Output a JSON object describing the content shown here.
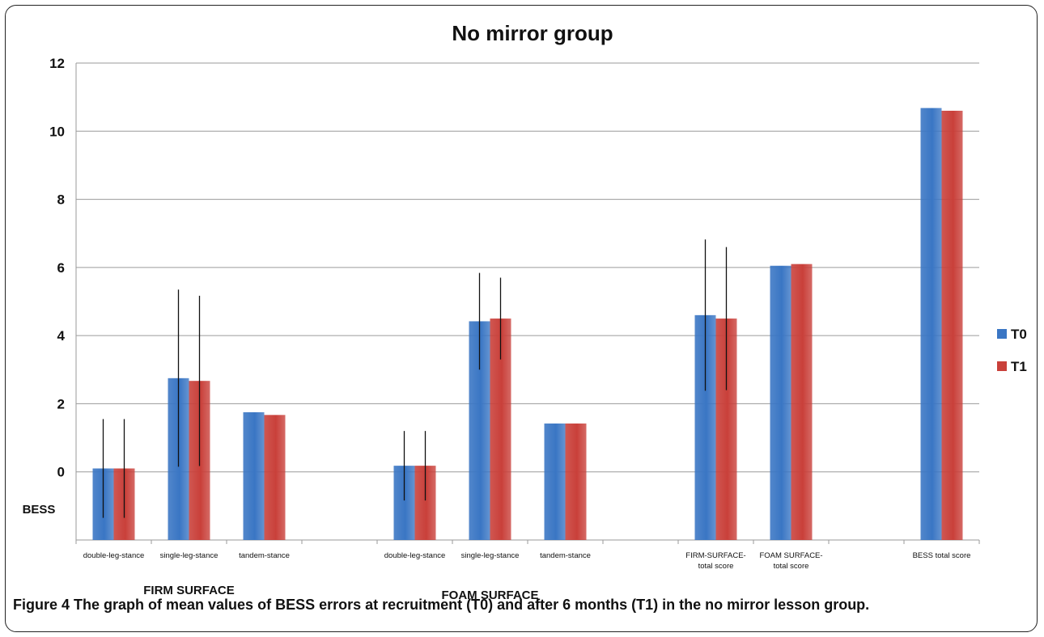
{
  "caption": {
    "lead": "Figure 4",
    "text": " The graph of mean values of BESS errors at recruitment (T0) and after 6 months (T1) in the no mirror lesson group."
  },
  "chart_data": {
    "type": "bar",
    "title": "No mirror group",
    "ylabel": "BESS",
    "xlabel": "",
    "ylim": [
      -2,
      12
    ],
    "yticks": [
      0,
      2,
      4,
      6,
      8,
      10,
      12
    ],
    "grid": true,
    "legend_position": "right",
    "categories": [
      "double-leg-stance",
      "single-leg-stance",
      "tandem-stance",
      "",
      "double-leg-stance",
      "single-leg-stance",
      "tandem-stance",
      "",
      "FIRM-SURFACE-\ntotal score",
      "FOAM SURFACE-\ntotal score",
      "",
      "BESS total score"
    ],
    "group_labels": [
      {
        "label": "FIRM SURFACE",
        "under_category": 1
      },
      {
        "label": "FOAM SURFACE",
        "under_category": 5
      }
    ],
    "series": [
      {
        "name": "T0",
        "color": "#3a76c4",
        "values": [
          0.1,
          2.75,
          1.75,
          null,
          0.18,
          4.42,
          1.42,
          null,
          4.6,
          6.05,
          null,
          10.68
        ],
        "error": [
          1.45,
          2.6,
          null,
          null,
          1.02,
          1.42,
          null,
          null,
          2.22,
          null,
          null,
          null
        ]
      },
      {
        "name": "T1",
        "color": "#c9403a",
        "values": [
          0.1,
          2.67,
          1.67,
          null,
          0.18,
          4.5,
          1.42,
          null,
          4.5,
          6.1,
          null,
          10.6
        ],
        "error": [
          1.45,
          2.5,
          null,
          null,
          1.02,
          1.2,
          null,
          null,
          2.1,
          null,
          null,
          null
        ]
      }
    ]
  }
}
